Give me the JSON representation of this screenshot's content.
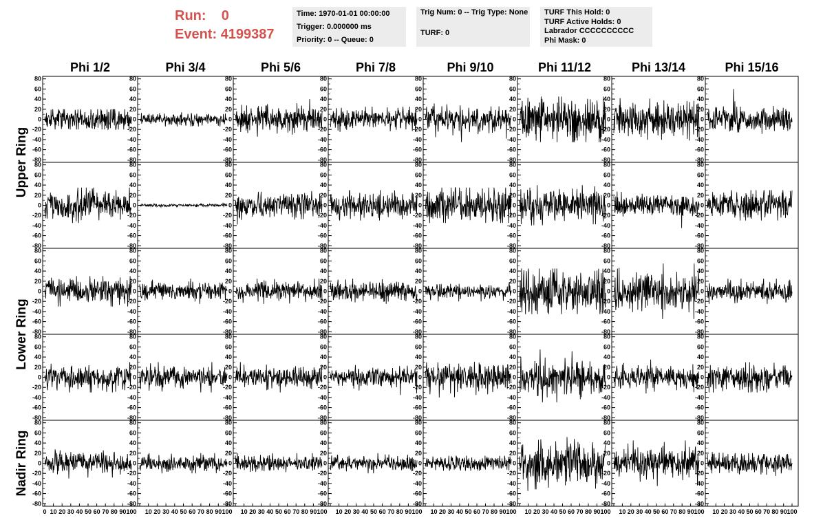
{
  "header": {
    "run_label": "Run:",
    "run_value": "0",
    "event_label": "Event:",
    "event_value": "4199387"
  },
  "info_time": {
    "time": "Time: 1970-01-01 00:00:00",
    "trigger": "Trigger: 0.000000 ms",
    "priority": "Priority: 0 -- Queue: 0"
  },
  "info_trig": {
    "trig": "Trig Num: 0 -- Trig Type: None",
    "turf": "TURF: 0"
  },
  "info_turf": {
    "hold": "TURF This Hold: 0",
    "active": "TURF Active Holds: 0",
    "labrador": "Labrador CCCCCCCCCC",
    "phimask": "Phi Mask: 0"
  },
  "chart_data": {
    "type": "line",
    "columns": [
      "Phi 1/2",
      "Phi 3/4",
      "Phi 5/6",
      "Phi 7/8",
      "Phi 9/10",
      "Phi 11/12",
      "Phi 13/14",
      "Phi 15/16"
    ],
    "ring_labels": [
      "Upper Ring",
      "Lower Ring",
      "Nadir Ring"
    ],
    "y_ticks": [
      "80",
      "60",
      "40",
      "20",
      "0",
      "-20",
      "-40",
      "-60",
      "-80"
    ],
    "x_ticks": [
      "0",
      "10",
      "20",
      "30",
      "40",
      "50",
      "60",
      "70",
      "80",
      "90",
      "100"
    ],
    "xlim": [
      0,
      100
    ],
    "ylim": [
      -85,
      85
    ],
    "samples_per_trace": 260,
    "trace_color": "#000000",
    "amplitude_rms": [
      [
        11,
        6,
        12,
        10,
        12,
        20,
        17,
        12
      ],
      [
        14,
        1.5,
        12,
        12,
        16,
        16,
        11,
        13
      ],
      [
        12,
        9,
        10,
        10,
        7,
        22,
        19,
        10
      ],
      [
        12,
        11,
        11,
        10,
        14,
        17,
        11,
        12
      ],
      [
        10,
        8,
        8,
        7,
        7,
        22,
        16,
        10
      ]
    ],
    "amplitude_peak": [
      [
        20,
        14,
        40,
        25,
        45,
        45,
        42,
        60
      ],
      [
        35,
        5,
        38,
        30,
        35,
        40,
        45,
        30
      ],
      [
        30,
        25,
        25,
        25,
        20,
        45,
        55,
        25
      ],
      [
        30,
        30,
        30,
        35,
        40,
        55,
        35,
        30
      ],
      [
        30,
        20,
        20,
        20,
        15,
        55,
        45,
        25
      ]
    ]
  }
}
